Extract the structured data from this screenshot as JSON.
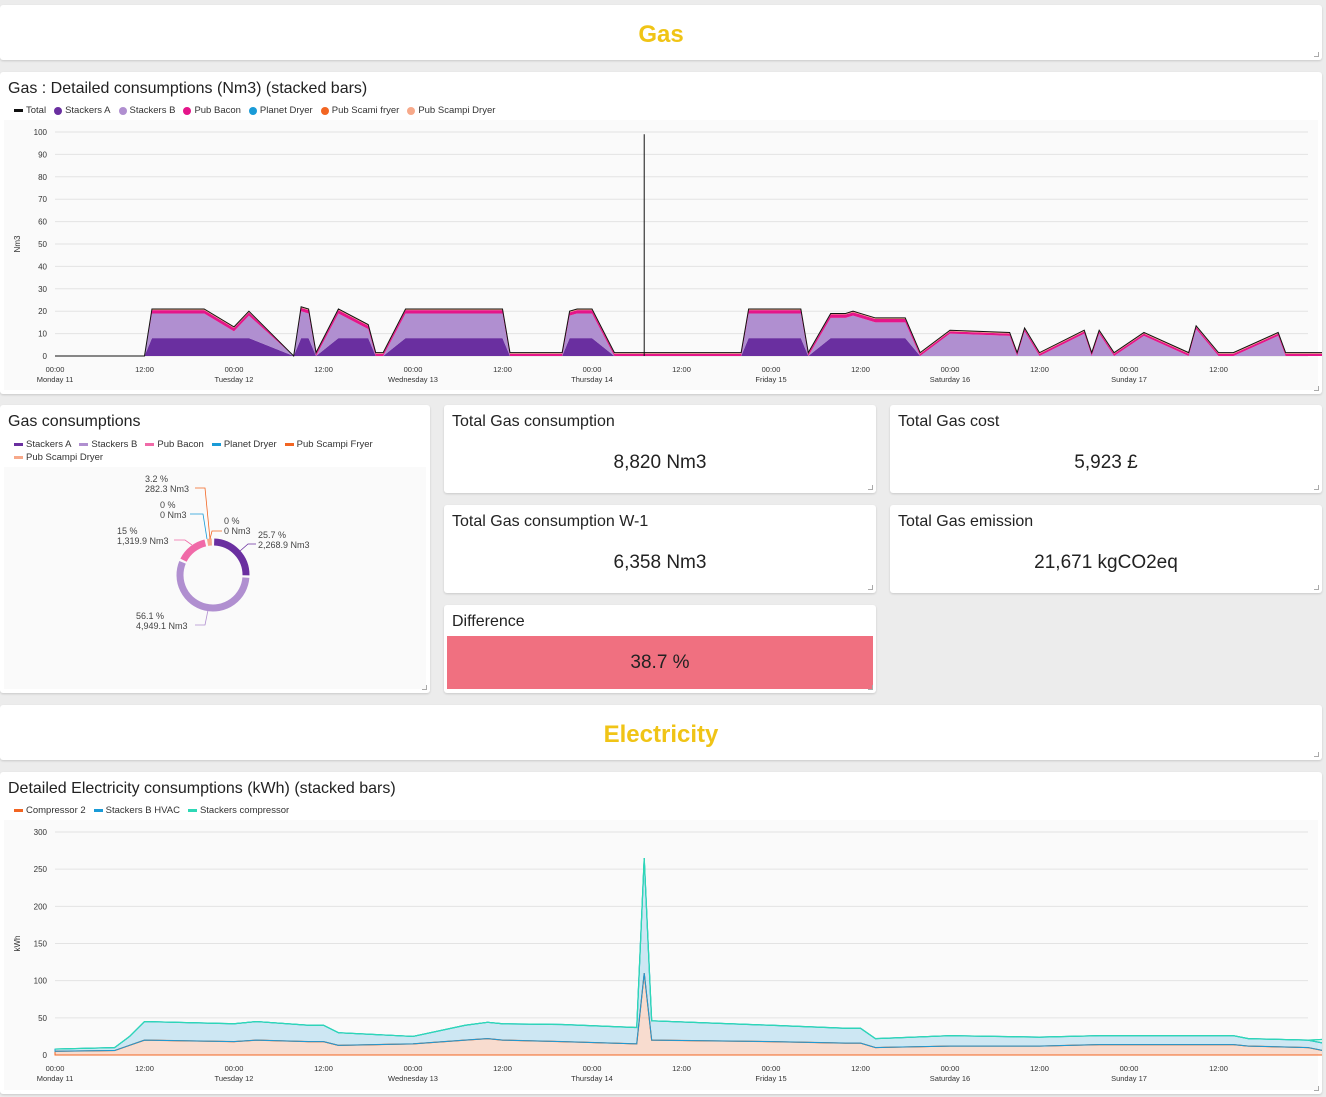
{
  "gas_section": {
    "title": "Gas"
  },
  "gas_chart": {
    "title": "Gas : Detailed consumptions (Nm3) (stacked bars)",
    "legend": [
      {
        "name": "Total",
        "color": "#111111",
        "shape": "line"
      },
      {
        "name": "Stackers A",
        "color": "#6a2fa0",
        "shape": "dot"
      },
      {
        "name": "Stackers B",
        "color": "#b08fd0",
        "shape": "dot"
      },
      {
        "name": "Pub Bacon",
        "color": "#e5158a",
        "shape": "dot"
      },
      {
        "name": "Planet Dryer",
        "color": "#1a9bd7",
        "shape": "dot"
      },
      {
        "name": "Pub Scami fryer",
        "color": "#f26522",
        "shape": "dot"
      },
      {
        "name": "Pub Scampi Dryer",
        "color": "#f7a98a",
        "shape": "dot"
      }
    ]
  },
  "gas_pie": {
    "title": "Gas consumptions",
    "legend": [
      {
        "name": "Stackers A",
        "color": "#6a2fa0"
      },
      {
        "name": "Stackers B",
        "color": "#b08fd0"
      },
      {
        "name": "Pub Bacon",
        "color": "#f06aa8"
      },
      {
        "name": "Planet Dryer",
        "color": "#1a9bd7"
      },
      {
        "name": "Pub Scampi Fryer",
        "color": "#f26522"
      },
      {
        "name": "Pub Scampi Dryer",
        "color": "#f7a98a"
      }
    ],
    "labels": {
      "stackers_a_pct": "25.7 %",
      "stackers_a_val": "2,268.9 Nm3",
      "stackers_b_pct": "56.1 %",
      "stackers_b_val": "4,949.1 Nm3",
      "pub_bacon_pct": "15 %",
      "pub_bacon_val": "1,319.9 Nm3",
      "planet_dryer_pct": "0 %",
      "planet_dryer_val": "0 Nm3",
      "fryer_pct": "0 %",
      "fryer_val": "0 Nm3",
      "dryer_pct": "3.2 %",
      "dryer_val": "282.3 Nm3"
    }
  },
  "kpis": {
    "total_gas_consumption": {
      "label": "Total Gas consumption",
      "value": "8,820 Nm3"
    },
    "total_gas_cost": {
      "label": "Total Gas cost",
      "value": "5,923 £"
    },
    "total_gas_consumption_w1": {
      "label": "Total Gas consumption W-1",
      "value": "6,358 Nm3"
    },
    "total_gas_emission": {
      "label": "Total Gas emission",
      "value": "21,671 kgCO2eq"
    },
    "difference": {
      "label": "Difference",
      "value": "38.7 %",
      "color": "#f07080"
    }
  },
  "electricity_section": {
    "title": "Electricity"
  },
  "elec_chart": {
    "title": "Detailed Electricity consumptions (kWh) (stacked bars)",
    "legend": [
      {
        "name": "Compressor 2",
        "color": "#f26522"
      },
      {
        "name": "Stackers B HVAC",
        "color": "#1a9bd7"
      },
      {
        "name": "Stackers compressor",
        "color": "#2ed8b6"
      }
    ]
  },
  "chart_data": [
    {
      "type": "area",
      "title": "Gas : Detailed consumptions (Nm3) (stacked bars)",
      "ylabel": "Nm3",
      "ylim": [
        0,
        100
      ],
      "yticks": [
        "100",
        "90",
        "80",
        "70",
        "60",
        "50",
        "40",
        "30",
        "20",
        "10",
        "0"
      ],
      "xticks": [
        {
          "t": "00:00",
          "d": "Monday 11"
        },
        {
          "t": "12:00",
          "d": ""
        },
        {
          "t": "00:00",
          "d": "Tuesday 12"
        },
        {
          "t": "12:00",
          "d": ""
        },
        {
          "t": "00:00",
          "d": "Wednesday 13"
        },
        {
          "t": "12:00",
          "d": ""
        },
        {
          "t": "00:00",
          "d": "Thursday 14"
        },
        {
          "t": "12:00",
          "d": ""
        },
        {
          "t": "00:00",
          "d": "Friday 15"
        },
        {
          "t": "12:00",
          "d": ""
        },
        {
          "t": "00:00",
          "d": "Saturday 16"
        },
        {
          "t": "12:00",
          "d": ""
        },
        {
          "t": "00:00",
          "d": "Sunday 17"
        },
        {
          "t": "12:00",
          "d": ""
        }
      ],
      "x_hours": [
        0,
        10,
        12,
        13,
        14,
        15,
        20,
        24,
        26,
        32,
        33,
        34,
        35,
        38,
        42,
        43,
        44,
        47,
        48,
        55,
        60,
        61,
        62,
        64,
        68,
        69,
        70,
        72,
        75,
        77,
        78,
        80,
        88,
        92,
        93,
        94,
        95,
        100,
        101,
        104,
        106,
        107,
        108,
        110,
        114,
        116,
        120,
        128,
        129,
        130,
        132,
        138,
        139,
        140,
        142,
        146,
        152,
        153,
        156,
        158,
        164,
        165,
        168,
        171,
        174,
        176,
        178
      ],
      "series": [
        {
          "name": "Stackers A",
          "values": [
            0,
            0,
            0,
            8,
            8,
            8,
            8,
            8,
            8,
            0,
            8,
            8,
            0,
            8,
            8,
            0,
            0,
            8,
            8,
            8,
            8,
            0,
            0,
            0,
            0,
            8,
            8,
            8,
            0,
            0,
            0,
            0,
            0,
            0,
            8,
            8,
            8,
            8,
            0,
            8,
            8,
            8,
            8,
            8,
            8,
            0,
            0,
            0,
            0,
            0,
            0,
            0,
            0,
            0,
            0,
            0,
            0,
            0,
            0,
            0,
            0,
            0,
            0,
            0,
            0,
            0,
            0
          ]
        },
        {
          "name": "Stackers B",
          "values": [
            0,
            0,
            0,
            11,
            11,
            11,
            11,
            3,
            10,
            0,
            12,
            11,
            0,
            11,
            4,
            0,
            0,
            11,
            11,
            11,
            11,
            0,
            0,
            0,
            0,
            10,
            11,
            11,
            0,
            0,
            0,
            0,
            0,
            0,
            11,
            11,
            11,
            11,
            0,
            9,
            9,
            10,
            9,
            7,
            7,
            0,
            10,
            9,
            0,
            11,
            0,
            10,
            0,
            10,
            0,
            9,
            0,
            12,
            0,
            0,
            9,
            0,
            0,
            0,
            0,
            0,
            0
          ]
        },
        {
          "name": "Pub Bacon",
          "values": [
            0,
            0,
            0,
            1.5,
            1.5,
            1.5,
            1.5,
            1.5,
            1.5,
            0,
            1.5,
            1.5,
            1,
            1.5,
            1.5,
            1,
            1,
            1.5,
            1.5,
            1.5,
            1.5,
            1,
            1,
            1,
            1,
            1.5,
            1.5,
            1.5,
            1,
            1,
            1,
            1,
            1,
            1,
            1.5,
            1.5,
            1.5,
            1.5,
            1,
            1.5,
            1.5,
            1.5,
            1.5,
            1.5,
            1.5,
            1,
            1,
            1,
            1,
            1,
            1,
            1,
            1,
            1,
            1,
            1,
            1,
            1,
            1,
            1,
            1,
            1,
            1,
            1,
            0,
            0,
            0
          ]
        },
        {
          "name": "Planet Dryer",
          "values": [
            0,
            0,
            0,
            0,
            0,
            0,
            0,
            0,
            0,
            0,
            0,
            0,
            0,
            0,
            0,
            0,
            0,
            0,
            0,
            0,
            0,
            0,
            0,
            0,
            0,
            0,
            0,
            0,
            0,
            0,
            0,
            0,
            0,
            0,
            0,
            0,
            0,
            0,
            0,
            0,
            0,
            0,
            0,
            0,
            0,
            0,
            0,
            0,
            0,
            0,
            0,
            0,
            0,
            0,
            0,
            0,
            0,
            0,
            0,
            0,
            0,
            0,
            0,
            0,
            0,
            0,
            0
          ]
        },
        {
          "name": "Pub Scami fryer",
          "values": [
            0,
            0,
            0,
            0,
            0,
            0,
            0,
            0,
            0,
            0,
            0,
            0,
            0,
            0,
            0,
            0,
            0,
            0,
            0,
            0,
            0,
            0,
            0,
            0,
            0,
            0,
            0,
            0,
            0,
            0,
            0,
            0,
            0,
            0,
            0,
            0,
            0,
            0,
            0,
            0,
            0,
            0,
            0,
            0,
            0,
            0,
            0,
            0,
            0,
            0,
            0,
            0,
            0,
            0,
            0,
            0,
            0,
            0,
            0,
            0,
            0,
            0,
            0,
            0,
            0,
            0,
            0
          ]
        },
        {
          "name": "Pub Scampi Dryer",
          "values": [
            0,
            0,
            0,
            0.5,
            0.5,
            0.5,
            0.5,
            0.5,
            0.5,
            0,
            0.5,
            0.5,
            0.5,
            0.5,
            0.5,
            0.5,
            0.5,
            0.5,
            0.5,
            0.5,
            0.5,
            0.5,
            0.5,
            0.5,
            0.5,
            0.5,
            0.5,
            0.5,
            0.5,
            0.5,
            0.5,
            0.5,
            0.5,
            0.5,
            0.5,
            0.5,
            0.5,
            0.5,
            0.5,
            0.5,
            0.5,
            0.5,
            0.5,
            0.5,
            0.5,
            0.5,
            0.5,
            0.5,
            0.5,
            0.5,
            0.5,
            0.5,
            0.5,
            0.5,
            0.5,
            0.5,
            0.5,
            0.5,
            0.5,
            0.5,
            0.5,
            0.5,
            0.5,
            0.5,
            0,
            0,
            0
          ]
        }
      ],
      "spike": {
        "x_hours": 79,
        "value": 99
      }
    },
    {
      "type": "pie",
      "title": "Gas consumptions",
      "labels": [
        "Stackers A",
        "Stackers B",
        "Pub Bacon",
        "Planet Dryer",
        "Pub Scampi Fryer",
        "Pub Scampi Dryer"
      ],
      "values": [
        2268.9,
        4949.1,
        1319.9,
        0,
        0,
        282.3
      ],
      "percent": [
        25.7,
        56.1,
        15,
        0,
        0,
        3.2
      ]
    },
    {
      "type": "area",
      "title": "Detailed Electricity consumptions (kWh) (stacked bars)",
      "ylabel": "kWh",
      "ylim": [
        0,
        300
      ],
      "yticks": [
        "300",
        "250",
        "200",
        "150",
        "100",
        "50",
        "0"
      ],
      "xticks": [
        {
          "t": "00:00",
          "d": "Monday 11"
        },
        {
          "t": "12:00",
          "d": ""
        },
        {
          "t": "00:00",
          "d": "Tuesday 12"
        },
        {
          "t": "12:00",
          "d": ""
        },
        {
          "t": "00:00",
          "d": "Wednesday 13"
        },
        {
          "t": "12:00",
          "d": ""
        },
        {
          "t": "00:00",
          "d": "Thursday 14"
        },
        {
          "t": "12:00",
          "d": ""
        },
        {
          "t": "00:00",
          "d": "Friday 15"
        },
        {
          "t": "12:00",
          "d": ""
        },
        {
          "t": "00:00",
          "d": "Saturday 16"
        },
        {
          "t": "12:00",
          "d": ""
        },
        {
          "t": "00:00",
          "d": "Sunday 17"
        },
        {
          "t": "12:00",
          "d": ""
        }
      ],
      "x_hours": [
        0,
        8,
        10,
        12,
        24,
        27,
        34,
        36,
        38,
        48,
        55,
        58,
        60,
        68,
        78,
        79,
        80,
        96,
        106,
        108,
        110,
        120,
        132,
        140,
        156,
        158,
        160,
        168,
        170,
        172,
        174,
        176,
        178
      ],
      "series": [
        {
          "name": "Compressor 2",
          "values": [
            5,
            6,
            13,
            20,
            18,
            20,
            18,
            18,
            13,
            15,
            20,
            22,
            20,
            18,
            15,
            110,
            20,
            18,
            16,
            16,
            10,
            12,
            12,
            14,
            14,
            14,
            12,
            10,
            6,
            4,
            3,
            2,
            2
          ]
        },
        {
          "name": "Stackers B HVAC",
          "values": [
            3,
            4,
            12,
            25,
            24,
            25,
            22,
            22,
            17,
            10,
            20,
            22,
            22,
            23,
            22,
            155,
            26,
            22,
            20,
            20,
            12,
            14,
            12,
            12,
            12,
            12,
            10,
            10,
            10,
            10,
            10,
            10,
            10
          ]
        },
        {
          "name": "Stackers compressor",
          "values": [
            0,
            0,
            0,
            0,
            0,
            0,
            0,
            0,
            0,
            0,
            0,
            0,
            0,
            0,
            0,
            0,
            0,
            0,
            0,
            0,
            0,
            0,
            0,
            0,
            0,
            0,
            0,
            0,
            5,
            10,
            13,
            15,
            15
          ]
        }
      ]
    }
  ]
}
